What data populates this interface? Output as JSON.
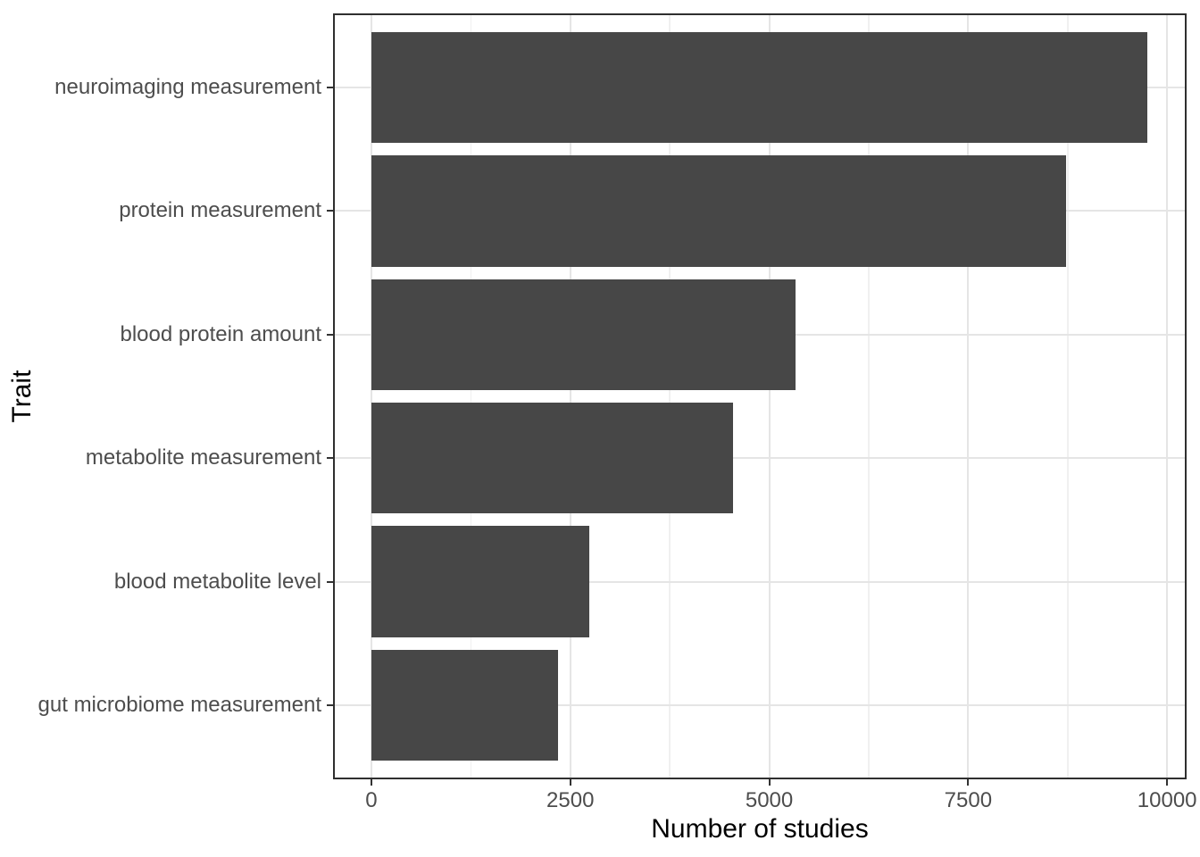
{
  "chart_data": {
    "type": "bar",
    "orientation": "horizontal",
    "title": "",
    "xlabel": "Number of studies",
    "ylabel": "Trait",
    "categories": [
      "neuroimaging measurement",
      "protein measurement",
      "blood protein amount",
      "metabolite measurement",
      "blood metabolite level",
      "gut microbiome measurement"
    ],
    "values": [
      9750,
      8730,
      5330,
      4550,
      2740,
      2350
    ],
    "x_ticks": [
      0,
      2500,
      5000,
      7500,
      10000
    ],
    "x_tick_labels": [
      "0",
      "2500",
      "5000",
      "7500",
      "10000"
    ],
    "x_minor_ticks": [
      1250,
      3750,
      6250,
      8750
    ],
    "xlim": [
      -482,
      10245
    ],
    "grid": "vertical major+minor, horizontal major at category centers",
    "legend": "none",
    "colors": {
      "bar": "#474747",
      "grid_major": "#e5e5e5",
      "grid_minor": "#f0f0f0",
      "panel_border": "#2f2f2f",
      "tick_mark": "#333333",
      "tick_label": "#4d4d4d",
      "axis_title": "#000000",
      "panel_background": "#ffffff"
    }
  }
}
